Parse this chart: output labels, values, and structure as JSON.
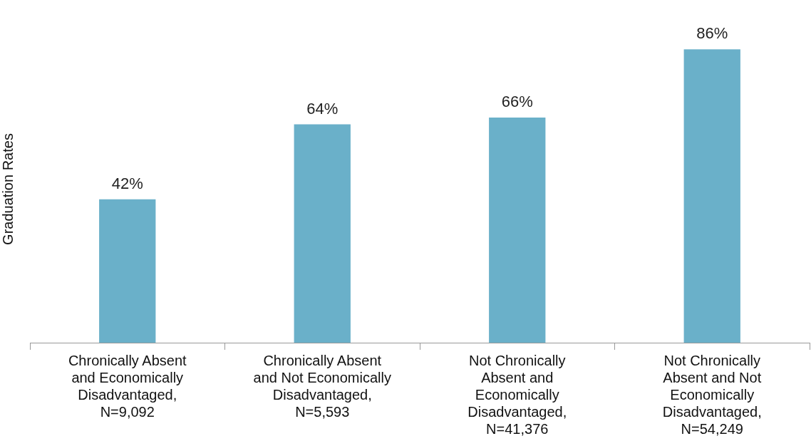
{
  "chart_data": {
    "type": "bar",
    "ylabel": "Graduation Rates",
    "categories": [
      "Chronically Absent and Economically Disadvantaged, N=9,092",
      "Chronically Absent and Not Economically Disadvantaged, N=5,593",
      "Not Chronically Absent and Economically Disadvantaged, N=41,376",
      "Not Chronically Absent and Not Economically Disadvantaged, N=54,249"
    ],
    "values": [
      42,
      64,
      66,
      86
    ],
    "value_labels": [
      "42%",
      "64%",
      "66%",
      "86%"
    ],
    "color": "#6ab0c9",
    "grid": false,
    "legend": false
  }
}
